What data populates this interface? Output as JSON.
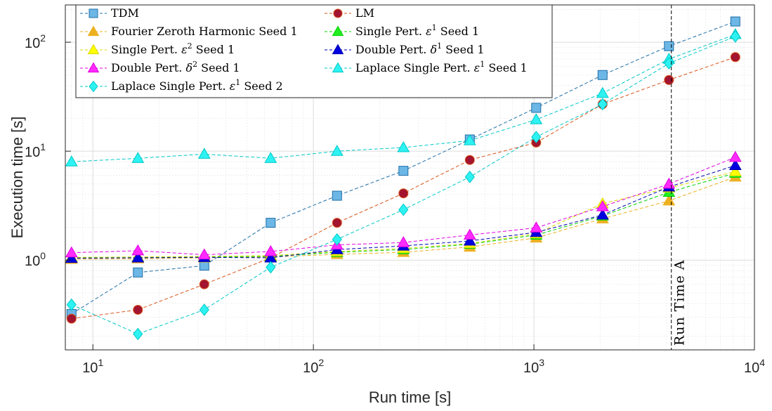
{
  "chart_data": {
    "type": "line",
    "title": "",
    "xlabel": "Run time [s]",
    "ylabel": "Execution time [s]",
    "xscale": "log",
    "yscale": "log",
    "xlim": [
      7.5,
      10000
    ],
    "ylim": [
      0.15,
      220
    ],
    "x_ticks": [
      {
        "base": "10",
        "exp": "1"
      },
      {
        "base": "10",
        "exp": "2"
      },
      {
        "base": "10",
        "exp": "3"
      },
      {
        "base": "10",
        "exp": "4"
      }
    ],
    "y_ticks": [
      {
        "base": "10",
        "exp": "0"
      },
      {
        "base": "10",
        "exp": "1"
      },
      {
        "base": "10",
        "exp": "2"
      }
    ],
    "grid": true,
    "legend": {
      "placement": "top-left",
      "columns": 2
    },
    "x": [
      8,
      16,
      32,
      64,
      128,
      256,
      512,
      1024,
      2048,
      4096,
      8192
    ],
    "series": [
      {
        "name": "TDM",
        "label_parts": [
          "TDM"
        ],
        "marker": "square",
        "color": "#1f6fa8",
        "fill": "#6cb7e6",
        "values": [
          0.32,
          0.77,
          0.89,
          2.2,
          3.9,
          6.6,
          12.8,
          25,
          50,
          92,
          155
        ]
      },
      {
        "name": "LM",
        "label_parts": [
          "LM"
        ],
        "marker": "circle",
        "color": "#d9541a",
        "fill": "#a2142f",
        "values": [
          0.29,
          0.35,
          0.6,
          1.05,
          2.2,
          4.1,
          8.3,
          12,
          27,
          45,
          73
        ]
      },
      {
        "name": "Fourier Zeroth Harmonic Seed 1",
        "label_parts": [
          "Fourier Zeroth Harmonic Seed 1"
        ],
        "marker": "triangle",
        "color": "#edb120",
        "fill": "#edb120",
        "values": [
          1.02,
          1.03,
          1.05,
          1.07,
          1.13,
          1.18,
          1.32,
          1.6,
          2.4,
          3.5,
          5.8
        ]
      },
      {
        "name": "Single Pert. ε¹ Seed 1",
        "label_parts": [
          "Single Pert. ",
          "ε",
          "1",
          " Seed 1"
        ],
        "marker": "triangle",
        "color": "#00d400",
        "fill": "#20ee20",
        "values": [
          1.05,
          1.06,
          1.07,
          1.08,
          1.18,
          1.25,
          1.4,
          1.7,
          2.55,
          4.2,
          6.3
        ]
      },
      {
        "name": "Single Pert. ε² Seed 1",
        "label_parts": [
          "Single Pert. ",
          "ε",
          "2",
          " Seed 1"
        ],
        "marker": "triangle",
        "color": "#d8d800",
        "fill": "#ffff00",
        "values": [
          1.06,
          1.07,
          1.08,
          1.1,
          1.2,
          1.28,
          1.42,
          1.75,
          3.3,
          4.6,
          6.5
        ]
      },
      {
        "name": "Double Pert. δ¹ Seed 1",
        "label_parts": [
          "Double Pert. ",
          "δ",
          "1",
          " Seed 1"
        ],
        "marker": "triangle",
        "color": "#0000b0",
        "fill": "#0000e0",
        "values": [
          1.04,
          1.05,
          1.06,
          1.05,
          1.25,
          1.35,
          1.5,
          1.8,
          2.6,
          4.7,
          7.4
        ]
      },
      {
        "name": "Double Pert. δ² Seed 1",
        "label_parts": [
          "Double Pert. ",
          "δ",
          "2",
          " Seed 1"
        ],
        "marker": "triangle",
        "color": "#e000e0",
        "fill": "#ff2bff",
        "values": [
          1.17,
          1.22,
          1.12,
          1.2,
          1.38,
          1.45,
          1.7,
          1.98,
          3.1,
          5,
          8.8
        ]
      },
      {
        "name": "Laplace Single Pert. ε¹ Seed 1",
        "label_parts": [
          "Laplace Single Pert. ",
          "ε",
          "1",
          " Seed 1"
        ],
        "marker": "triangle",
        "color": "#00c8c8",
        "fill": "#2ef2f2",
        "values": [
          8,
          8.6,
          9.4,
          8.6,
          10,
          10.8,
          12.5,
          19.5,
          34,
          70,
          118
        ]
      },
      {
        "name": "Laplace Single Pert. ε¹ Seed 2",
        "label_parts": [
          "Laplace Single Pert. ",
          "ε",
          "1",
          " Seed 2"
        ],
        "marker": "diamond",
        "color": "#00c8c8",
        "fill": "#2ef2f2",
        "values": [
          0.39,
          0.21,
          0.35,
          0.86,
          1.55,
          2.9,
          5.8,
          13.5,
          27,
          64,
          113
        ]
      }
    ],
    "annotations": [
      {
        "label": "Run Time A",
        "type": "vertical-line",
        "x": 4200
      }
    ]
  }
}
